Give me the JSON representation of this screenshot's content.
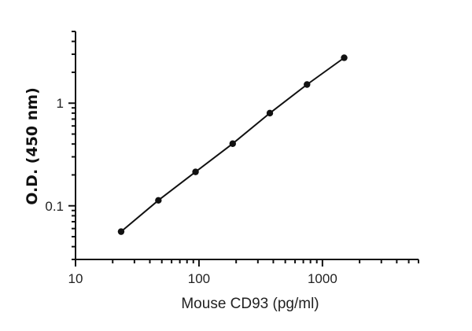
{
  "chart_data": {
    "type": "scatter",
    "title": "",
    "xlabel": "Mouse CD93 (pg/ml)",
    "ylabel": "O.D. (450 nm)",
    "x_scale": "log",
    "y_scale": "log",
    "xlim": [
      10,
      6000
    ],
    "ylim": [
      0.03,
      5
    ],
    "x_ticks": [
      10,
      100,
      1000
    ],
    "x_tick_labels": [
      "10",
      "100",
      "1000"
    ],
    "y_ticks": [
      0.1,
      1
    ],
    "y_tick_labels": [
      "0.1",
      "1"
    ],
    "grid": false,
    "legend": "none",
    "series": [
      {
        "x": [
          23.4,
          46.9,
          93.8,
          187.5,
          375,
          750,
          1500
        ],
        "y": [
          0.056,
          0.113,
          0.214,
          0.403,
          0.8,
          1.52,
          2.77
        ],
        "markers": true,
        "fit_line": true,
        "color": "#111111"
      }
    ]
  }
}
